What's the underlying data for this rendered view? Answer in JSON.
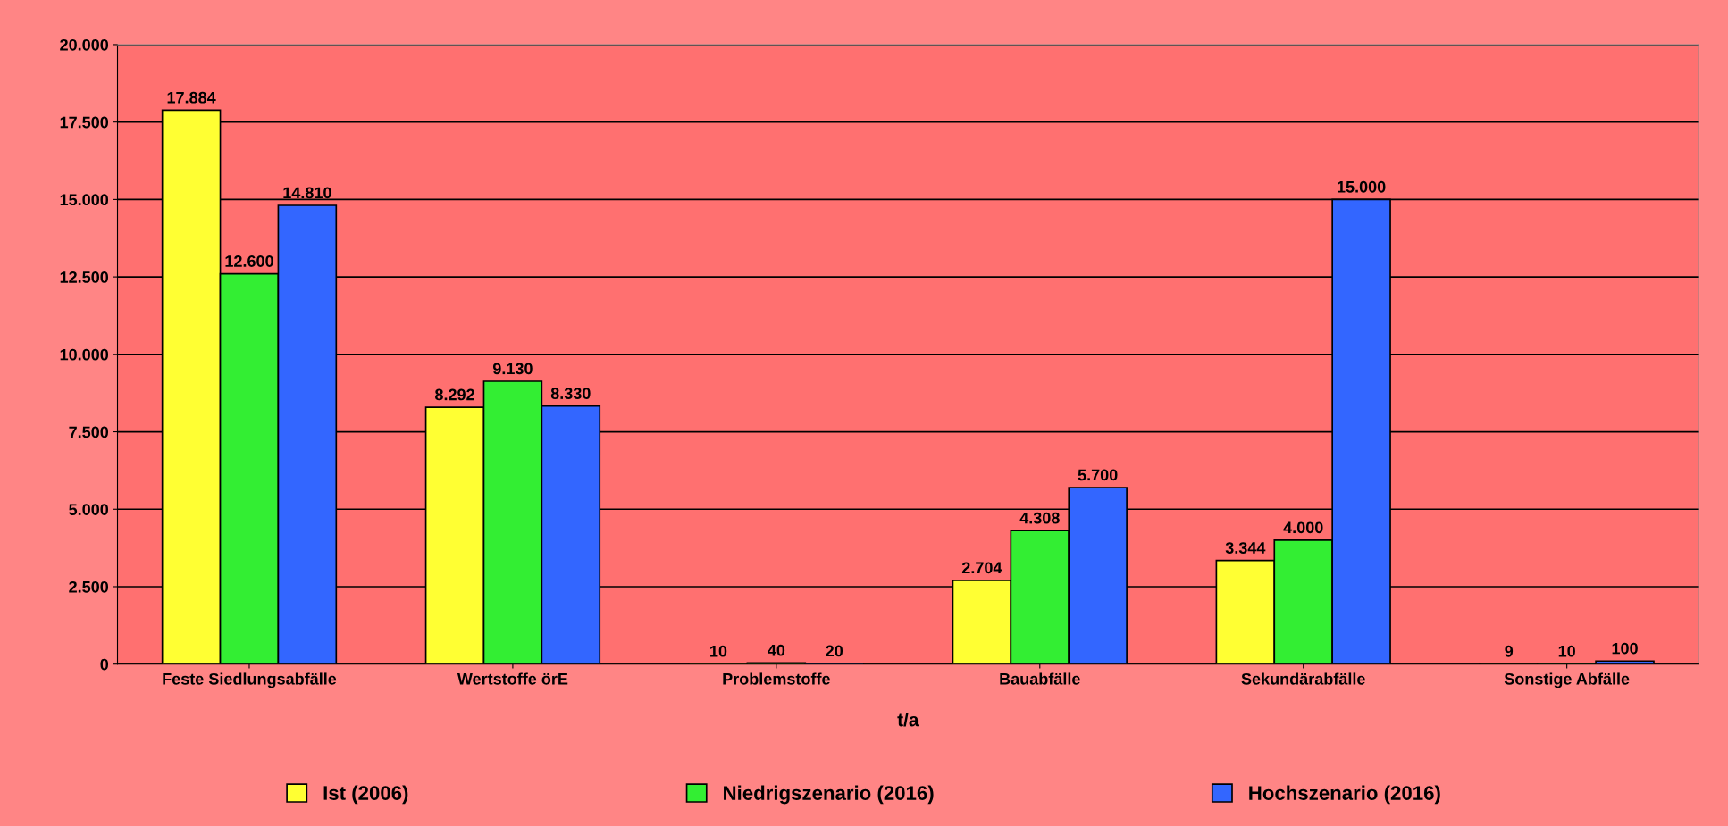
{
  "chart_data": {
    "type": "bar",
    "xlabel": "t/a",
    "categories": [
      "Feste Siedlungsabfälle",
      "Wertstoffe örE",
      "Problemstoffe",
      "Bauabfälle",
      "Sekundärabfälle",
      "Sonstige Abfälle"
    ],
    "series": [
      {
        "name": "Ist (2006)",
        "color": "#ffff33",
        "values": [
          17884,
          8292,
          10,
          2704,
          3344,
          9
        ],
        "value_labels": [
          "17.884",
          "8.292",
          "10",
          "2.704",
          "3.344",
          "9"
        ]
      },
      {
        "name": "Niedrigszenario (2016)",
        "color": "#33ee33",
        "values": [
          12600,
          9130,
          40,
          4308,
          4000,
          10
        ],
        "value_labels": [
          "12.600",
          "9.130",
          "40",
          "4.308",
          "4.000",
          "10"
        ]
      },
      {
        "name": "Hochszenario (2016)",
        "color": "#3366ff",
        "values": [
          14810,
          8330,
          20,
          5700,
          15000,
          100
        ],
        "value_labels": [
          "14.810",
          "8.330",
          "20",
          "5.700",
          "15.000",
          "100"
        ]
      }
    ],
    "ylim": [
      0,
      20000
    ],
    "yticks": [
      {
        "value": 0,
        "label": "0"
      },
      {
        "value": 2500,
        "label": "2.500"
      },
      {
        "value": 5000,
        "label": "5.000"
      },
      {
        "value": 7500,
        "label": "7.500"
      },
      {
        "value": 10000,
        "label": "10.000"
      },
      {
        "value": 12500,
        "label": "12.500"
      },
      {
        "value": 15000,
        "label": "15.000"
      },
      {
        "value": 17500,
        "label": "17.500"
      },
      {
        "value": 20000,
        "label": "20.000"
      }
    ],
    "grid": "y",
    "legend": "bottom"
  }
}
